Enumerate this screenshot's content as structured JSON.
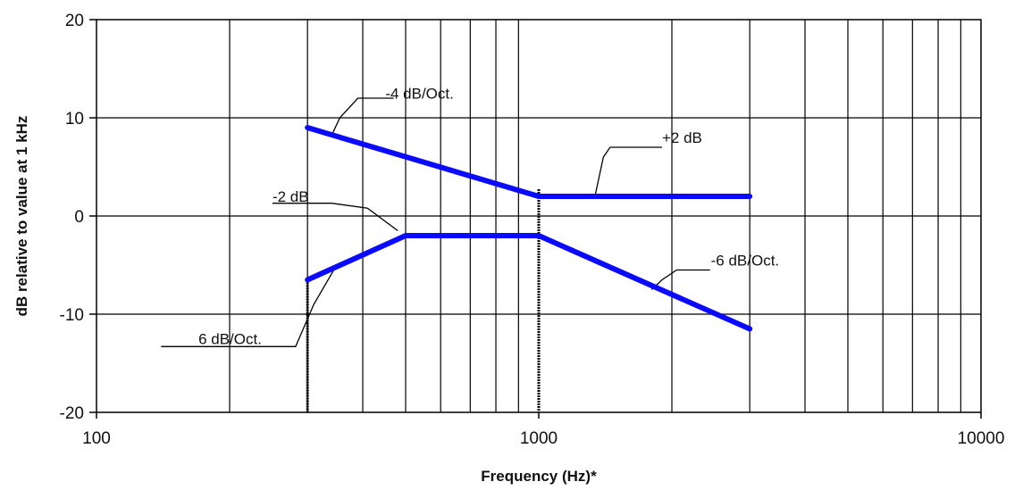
{
  "chart_data": {
    "type": "line",
    "xlabel": "Frequency (Hz)*",
    "ylabel": "dB relative to value at 1 kHz",
    "x_scale": "log",
    "xlim": [
      100,
      10000
    ],
    "ylim": [
      -20,
      20
    ],
    "grid": true,
    "x_ticks": [
      "100",
      "1000",
      "10000"
    ],
    "y_ticks": [
      "20",
      "10",
      "0",
      "-10",
      "-20"
    ],
    "series": [
      {
        "x": [
          300,
          1000,
          3000
        ],
        "y": [
          9,
          2,
          2
        ]
      },
      {
        "x": [
          300,
          500,
          1000,
          3000
        ],
        "y": [
          -6.5,
          -2,
          -2,
          -11.5
        ]
      }
    ],
    "annotations": [
      {
        "text": "-4 dB/Oct.",
        "x": 450,
        "y": 12.5
      },
      {
        "text": "+2 dB",
        "x": 1900,
        "y": 8
      },
      {
        "text": "-2 dB",
        "x": 250,
        "y": 2
      },
      {
        "text": "-6 dB/Oct.",
        "x": 2450,
        "y": -4.5
      },
      {
        "text": "6 dB/Oct.",
        "x": 170,
        "y": -12.5
      }
    ]
  }
}
